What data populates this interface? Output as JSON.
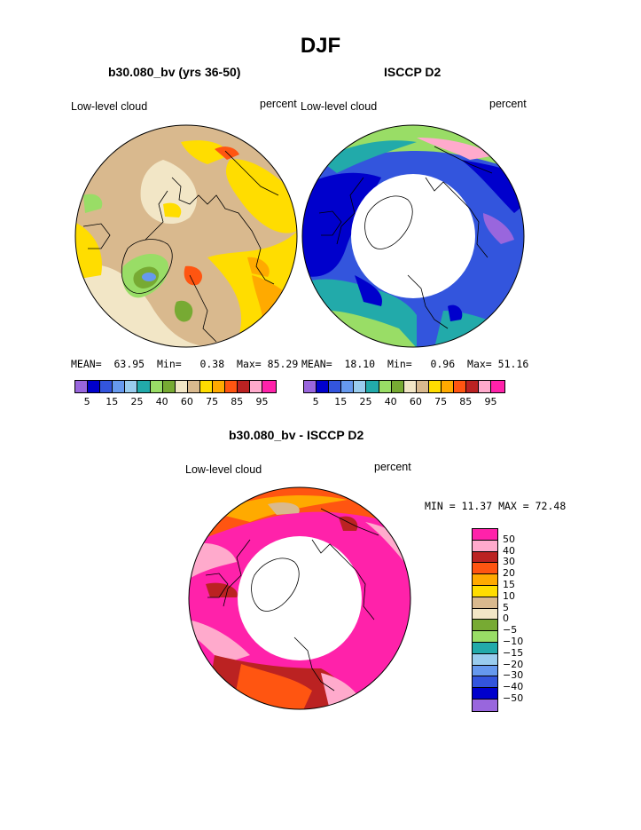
{
  "title": "DJF",
  "panels": [
    {
      "title": "b30.080_bv (yrs 36-50)",
      "field_label": "Low-level cloud",
      "units": "percent",
      "stats": {
        "mean_label": "MEAN=",
        "mean": "63.95",
        "min_label": "Min=",
        "min": "0.38",
        "max_label": "Max=",
        "max": "85.29"
      }
    },
    {
      "title": "ISCCP D2",
      "field_label": "Low-level cloud",
      "units": "percent",
      "stats": {
        "mean_label": "MEAN=",
        "mean": "18.10",
        "min_label": "Min=",
        "min": "0.96",
        "max_label": "Max=",
        "max": "51.16"
      }
    }
  ],
  "diff_panel": {
    "title": "b30.080_bv - ISCCP D2",
    "field_label": "Low-level cloud",
    "units": "percent",
    "stats_text": "MIN =  11.37 MAX =  72.48"
  },
  "colorbar_abs": {
    "tick_labels": [
      "5",
      "15",
      "25",
      "40",
      "60",
      "75",
      "85",
      "95"
    ],
    "colors": [
      "#9966dd",
      "#0000cc",
      "#3355dd",
      "#6699ee",
      "#99ccee",
      "#22aaaa",
      "#99dd66",
      "#77aa33",
      "#f2e6c6",
      "#d9b98e",
      "#ffdd00",
      "#ffaa00",
      "#ff5511",
      "#bb2222",
      "#ffaacc",
      "#ff22aa"
    ]
  },
  "colorbar_diff": {
    "tick_labels": [
      "50",
      "40",
      "30",
      "20",
      "15",
      "10",
      "5",
      "0",
      "−5",
      "−10",
      "−15",
      "−20",
      "−30",
      "−40",
      "−50"
    ],
    "colors": [
      "#ff22aa",
      "#ffaacc",
      "#bb2222",
      "#ff5511",
      "#ffaa00",
      "#ffdd00",
      "#d9b98e",
      "#f2e6c6",
      "#77aa33",
      "#99dd66",
      "#22aaaa",
      "#99ccee",
      "#6699ee",
      "#3355dd",
      "#0000cc",
      "#9966dd"
    ]
  }
}
